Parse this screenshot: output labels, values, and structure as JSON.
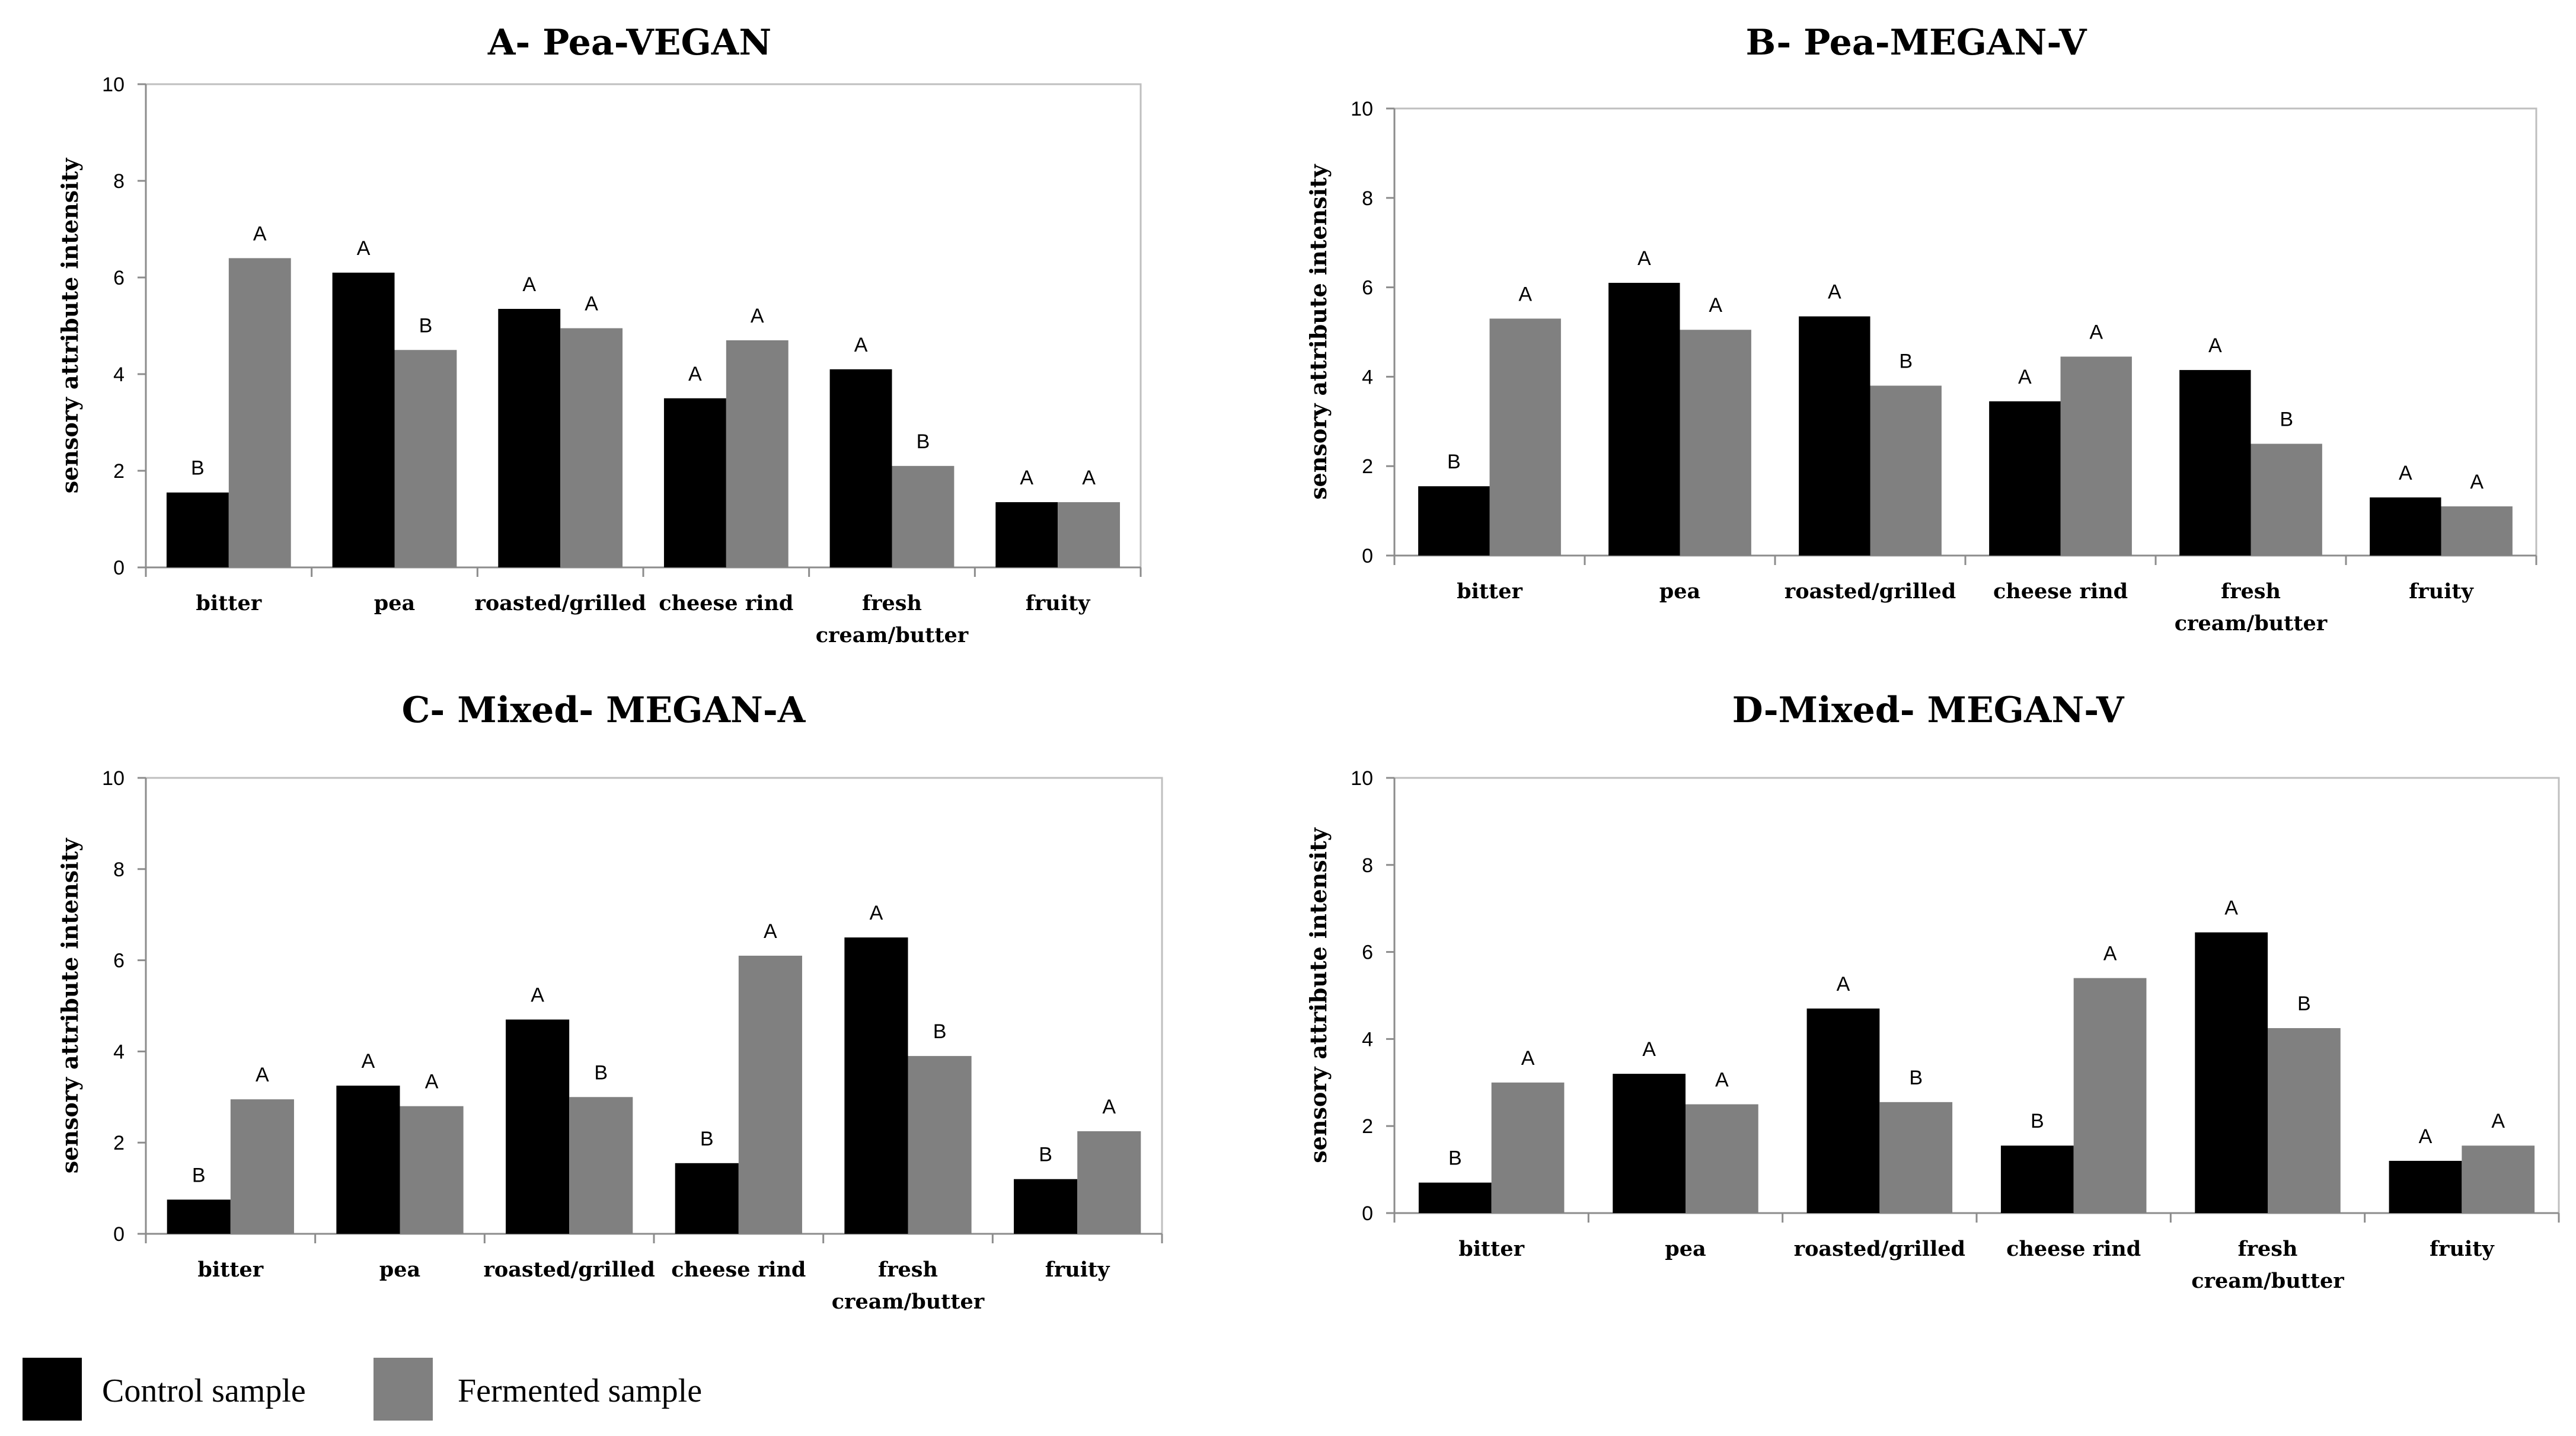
{
  "colors": {
    "control": "#000000",
    "fermented": "#808080",
    "axis": "#8c8c8c",
    "frame": "#bfbfbf"
  },
  "legend": {
    "items": [
      {
        "label": "Control sample",
        "color": "#000000"
      },
      {
        "label": "Fermented sample",
        "color": "#808080"
      }
    ]
  },
  "chart_data": [
    {
      "type": "bar",
      "title": "A- Pea-VEGAN",
      "xlabel": "",
      "ylabel": "sensory attribute intensity",
      "ylim": [
        0,
        10
      ],
      "yticks": [
        "0",
        "2",
        "4",
        "6",
        "8",
        "10"
      ],
      "categories": [
        "bitter",
        "pea",
        "roasted/grilled",
        "cheese rind",
        "fresh|cream/butter",
        "fruity"
      ],
      "series": [
        {
          "name": "Control sample",
          "values": [
            1.55,
            6.1,
            5.35,
            3.5,
            4.1,
            1.35
          ],
          "labels": [
            "B",
            "A",
            "A",
            "A",
            "A",
            "A"
          ]
        },
        {
          "name": "Fermented sample",
          "values": [
            6.4,
            4.5,
            4.95,
            4.7,
            2.1,
            1.35
          ],
          "labels": [
            "A",
            "B",
            "A",
            "A",
            "B",
            "A"
          ]
        }
      ]
    },
    {
      "type": "bar",
      "title": "B- Pea-MEGAN-V",
      "xlabel": "",
      "ylabel": "sensory attribute intensity",
      "ylim": [
        0,
        10
      ],
      "yticks": [
        "0",
        "2",
        "4",
        "6",
        "8",
        "10"
      ],
      "categories": [
        "bitter",
        "pea",
        "roasted/grilled",
        "cheese rind",
        "fresh|cream/butter",
        "fruity"
      ],
      "series": [
        {
          "name": "Control sample",
          "values": [
            1.55,
            6.1,
            5.35,
            3.45,
            4.15,
            1.3
          ],
          "labels": [
            "B",
            "A",
            "A",
            "A",
            "A",
            "A"
          ]
        },
        {
          "name": "Fermented sample",
          "values": [
            5.3,
            5.05,
            3.8,
            4.45,
            2.5,
            1.1
          ],
          "labels": [
            "A",
            "A",
            "B",
            "A",
            "B",
            "A"
          ]
        }
      ]
    },
    {
      "type": "bar",
      "title": "C- Mixed- MEGAN-A",
      "xlabel": "",
      "ylabel": "sensory attribute intensity",
      "ylim": [
        0,
        10
      ],
      "yticks": [
        "0",
        "2",
        "4",
        "6",
        "8",
        "10"
      ],
      "categories": [
        "bitter",
        "pea",
        "roasted/grilled",
        "cheese rind",
        "fresh|cream/butter",
        "fruity"
      ],
      "series": [
        {
          "name": "Control sample",
          "values": [
            0.75,
            3.25,
            4.7,
            1.55,
            6.5,
            1.2
          ],
          "labels": [
            "B",
            "A",
            "A",
            "B",
            "A",
            "B"
          ]
        },
        {
          "name": "Fermented sample",
          "values": [
            2.95,
            2.8,
            3.0,
            6.1,
            3.9,
            2.25
          ],
          "labels": [
            "A",
            "A",
            "B",
            "A",
            "B",
            "A"
          ]
        }
      ]
    },
    {
      "type": "bar",
      "title": "D-Mixed- MEGAN-V",
      "xlabel": "",
      "ylabel": "sensory attribute intensity",
      "ylim": [
        0,
        10
      ],
      "yticks": [
        "0",
        "2",
        "4",
        "6",
        "8",
        "10"
      ],
      "categories": [
        "bitter",
        "pea",
        "roasted/grilled",
        "cheese rind",
        "fresh|cream/butter",
        "fruity"
      ],
      "series": [
        {
          "name": "Control sample",
          "values": [
            0.7,
            3.2,
            4.7,
            1.55,
            6.45,
            1.2
          ],
          "labels": [
            "B",
            "A",
            "A",
            "B",
            "A",
            "A"
          ]
        },
        {
          "name": "Fermented sample",
          "values": [
            3.0,
            2.5,
            2.55,
            5.4,
            4.25,
            1.55
          ],
          "labels": [
            "A",
            "A",
            "B",
            "A",
            "B",
            "A"
          ]
        }
      ]
    }
  ]
}
